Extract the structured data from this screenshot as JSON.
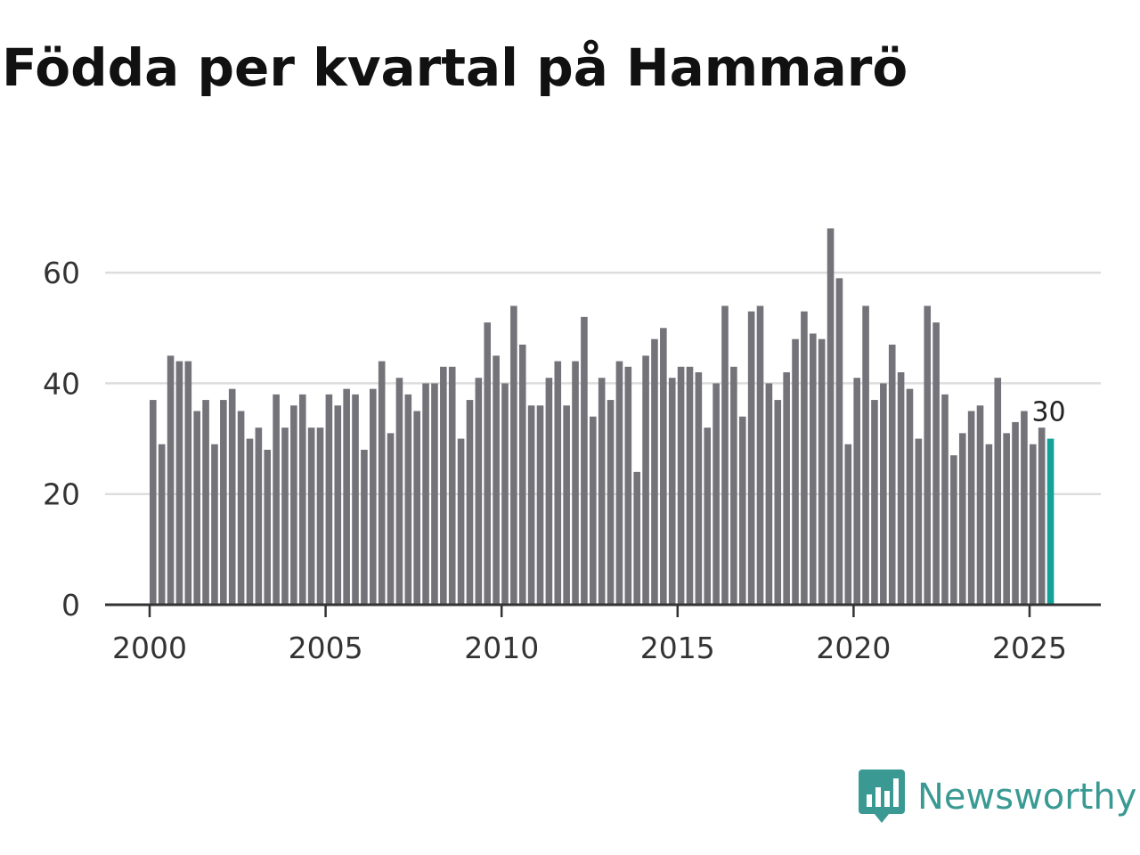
{
  "chart_data": {
    "type": "bar",
    "title": "Födda per kvartal på Hammarö",
    "xlabel": "",
    "ylabel": "",
    "ylim": [
      0,
      70
    ],
    "yticks": [
      0,
      20,
      40,
      60
    ],
    "xticks": [
      2000,
      2005,
      2010,
      2015,
      2020,
      2025
    ],
    "grid": true,
    "start_year": 2000,
    "start_quarter": 1,
    "values": [
      37,
      29,
      45,
      44,
      44,
      35,
      37,
      29,
      37,
      39,
      35,
      30,
      32,
      28,
      38,
      32,
      36,
      38,
      32,
      32,
      38,
      36,
      39,
      38,
      28,
      39,
      44,
      31,
      41,
      38,
      35,
      40,
      40,
      43,
      43,
      30,
      37,
      41,
      51,
      45,
      40,
      54,
      47,
      36,
      36,
      41,
      44,
      36,
      44,
      52,
      34,
      41,
      37,
      44,
      43,
      24,
      45,
      48,
      50,
      41,
      43,
      43,
      42,
      32,
      40,
      54,
      43,
      34,
      53,
      54,
      40,
      37,
      42,
      48,
      53,
      49,
      48,
      68,
      59,
      29,
      41,
      54,
      37,
      40,
      47,
      42,
      39,
      30,
      54,
      51,
      38,
      27,
      31,
      35,
      36,
      29,
      41,
      31,
      33,
      35,
      29,
      32,
      30
    ],
    "highlight_last": true,
    "last_value_label": "30",
    "colors": {
      "bar": "#747379",
      "highlight": "#14a19a",
      "grid": "#dddddd",
      "axis": "#333333"
    }
  },
  "branding": {
    "name": "Newsworthy",
    "color": "#3a9a93"
  }
}
